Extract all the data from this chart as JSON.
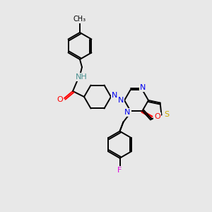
{
  "bg": "#e8e8e8",
  "C": "#000000",
  "N": "#0000ee",
  "O": "#ff0000",
  "S": "#ccaa00",
  "F": "#dd00dd",
  "NH_col": "#4a9090",
  "lw": 1.4,
  "lw2": 1.4
}
